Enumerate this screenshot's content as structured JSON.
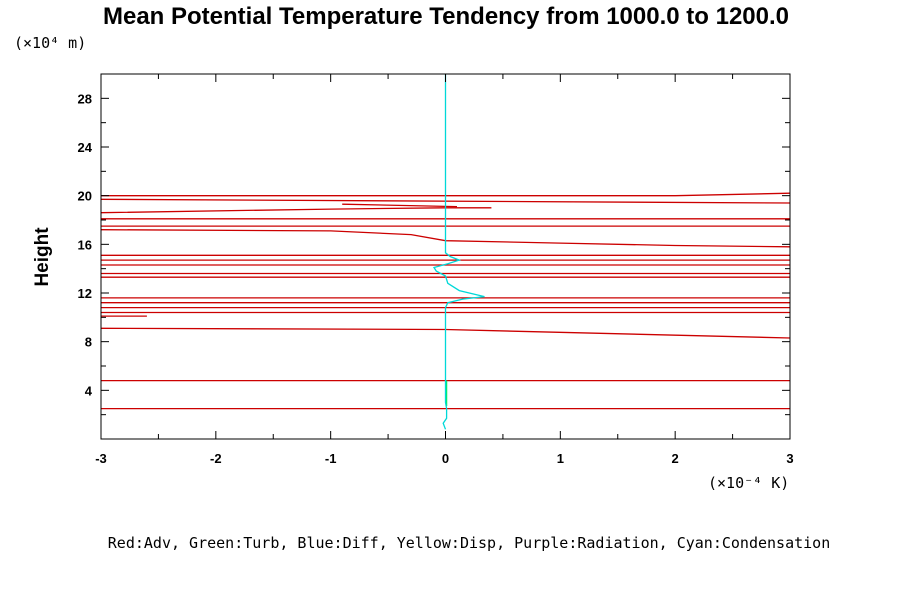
{
  "chart_data": {
    "type": "line",
    "title": "Mean Potential Temperature Tendency from 1000.0 to 1200.0",
    "ylabel": "Height",
    "y_unit": "(×10⁴ m)",
    "x_unit": "(×10⁻⁴ K)",
    "xlim": [
      -3,
      3
    ],
    "ylim": [
      0,
      30
    ],
    "x_ticks": [
      "-3",
      "-2",
      "-1",
      "0",
      "1",
      "2",
      "3"
    ],
    "y_ticks": [
      "4",
      "8",
      "12",
      "16",
      "20",
      "24",
      "28"
    ],
    "grid": false,
    "legend_text": "Red:Adv, Green:Turb, Blue:Diff, Yellow:Disp, Purple:Radiation, Cyan:Condensation",
    "series": [
      {
        "name": "Adv",
        "color": "#cc0000",
        "segments": [
          [
            [
              -3,
              2.5
            ],
            [
              3,
              2.5
            ]
          ],
          [
            [
              -3,
              4.8
            ],
            [
              3,
              4.8
            ]
          ],
          [
            [
              -3,
              9.1
            ],
            [
              0,
              9.0
            ],
            [
              3,
              8.3
            ]
          ],
          [
            [
              -3,
              10.1
            ],
            [
              -2.6,
              10.1
            ]
          ],
          [
            [
              -3,
              10.4
            ],
            [
              3,
              10.4
            ]
          ],
          [
            [
              -3,
              10.8
            ],
            [
              3,
              10.8
            ]
          ],
          [
            [
              -3,
              11.2
            ],
            [
              3,
              11.2
            ]
          ],
          [
            [
              -3,
              11.6
            ],
            [
              3,
              11.6
            ]
          ],
          [
            [
              -3,
              13.3
            ],
            [
              3,
              13.3
            ]
          ],
          [
            [
              -3,
              13.6
            ],
            [
              3,
              13.6
            ]
          ],
          [
            [
              -3,
              14.3
            ],
            [
              3,
              14.3
            ]
          ],
          [
            [
              -3,
              14.7
            ],
            [
              3,
              14.7
            ]
          ],
          [
            [
              -3,
              15.1
            ],
            [
              3,
              15.1
            ]
          ],
          [
            [
              -3,
              17.2
            ],
            [
              -1,
              17.1
            ],
            [
              -0.3,
              16.8
            ],
            [
              0,
              16.3
            ],
            [
              1,
              16.1
            ],
            [
              2,
              15.9
            ],
            [
              3,
              15.8
            ]
          ],
          [
            [
              -3,
              17.5
            ],
            [
              3,
              17.5
            ]
          ],
          [
            [
              -3,
              18.1
            ],
            [
              3,
              18.1
            ]
          ],
          [
            [
              -3,
              18.6
            ],
            [
              -1,
              18.9
            ],
            [
              0,
              19.0
            ],
            [
              0.4,
              19.0
            ]
          ],
          [
            [
              -0.9,
              19.3
            ],
            [
              0.1,
              19.1
            ]
          ],
          [
            [
              -3,
              19.7
            ],
            [
              3,
              19.4
            ]
          ],
          [
            [
              -3,
              20.0
            ],
            [
              0,
              20.0
            ],
            [
              2,
              20.0
            ],
            [
              3,
              20.2
            ]
          ]
        ]
      },
      {
        "name": "Turb",
        "color": "#00ee66",
        "segments": [
          [
            [
              0.01,
              2.7
            ],
            [
              0.01,
              4.8
            ]
          ]
        ]
      },
      {
        "name": "Condensation",
        "color": "#00d8d8",
        "segments": [
          [
            [
              0,
              0.8
            ],
            [
              -0.02,
              1.3
            ],
            [
              0.01,
              1.7
            ],
            [
              0.01,
              2.5
            ],
            [
              0,
              3.0
            ],
            [
              0,
              10.8
            ],
            [
              0.02,
              11.2
            ],
            [
              0.15,
              11.5
            ],
            [
              0.34,
              11.7
            ],
            [
              0.12,
              12.2
            ],
            [
              0.02,
              12.8
            ],
            [
              0,
              13.4
            ],
            [
              -0.08,
              13.8
            ],
            [
              -0.1,
              14.1
            ],
            [
              0.02,
              14.4
            ],
            [
              0.12,
              14.7
            ],
            [
              0.04,
              15.0
            ],
            [
              0,
              15.3
            ],
            [
              0,
              16.0
            ],
            [
              0,
              30
            ]
          ]
        ]
      }
    ]
  }
}
